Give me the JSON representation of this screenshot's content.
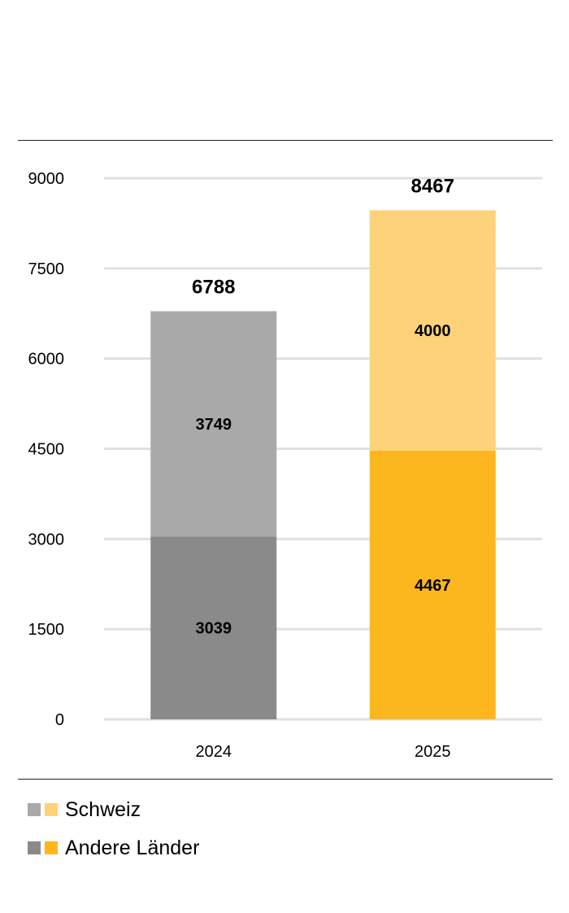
{
  "chart_data": {
    "type": "bar",
    "stacked": true,
    "categories": [
      "2024",
      "2025"
    ],
    "series": [
      {
        "name": "Andere Länder",
        "values": [
          3039,
          4467
        ],
        "colors": [
          "#8a8a8a",
          "#fdb71e"
        ]
      },
      {
        "name": "Schweiz",
        "values": [
          3749,
          4000
        ],
        "colors": [
          "#a9a9a9",
          "#fed27a"
        ]
      }
    ],
    "totals": [
      6788,
      8467
    ],
    "y_ticks": [
      0,
      1500,
      3000,
      4500,
      6000,
      7500,
      9000
    ],
    "ylim": [
      0,
      9000
    ],
    "grid": true,
    "legend_position": "bottom-left"
  },
  "legend": {
    "items": [
      {
        "label": "Schweiz",
        "colors": [
          "#a9a9a9",
          "#fed27a"
        ]
      },
      {
        "label": "Andere Länder",
        "colors": [
          "#8a8a8a",
          "#fdb71e"
        ]
      }
    ]
  }
}
